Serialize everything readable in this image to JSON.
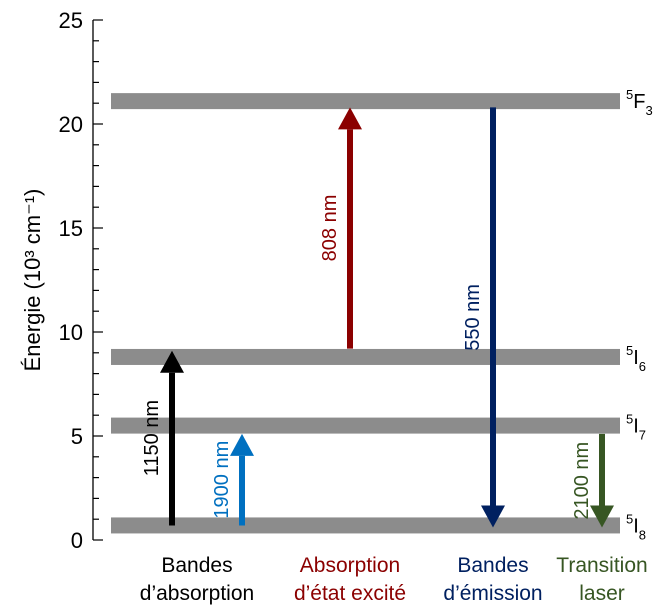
{
  "chart_data": {
    "type": "diagram",
    "ylabel": "Énergie (10³ cm⁻¹)",
    "ylim": [
      0,
      25
    ],
    "yticks": [
      0,
      5,
      10,
      15,
      20,
      25
    ],
    "levels": [
      {
        "id": "5I8",
        "sup": "5",
        "base": "I",
        "sub": "8",
        "energy": 0.7,
        "color": "#8c8c8c"
      },
      {
        "id": "5I7",
        "sup": "5",
        "base": "I",
        "sub": "7",
        "energy": 5.5,
        "color": "#8c8c8c"
      },
      {
        "id": "5I6",
        "sup": "5",
        "base": "I",
        "sub": "6",
        "energy": 8.8,
        "color": "#8c8c8c"
      },
      {
        "id": "5F3",
        "sup": "5",
        "base": "F",
        "sub": "3",
        "energy": 21.1,
        "color": "#8c8c8c"
      }
    ],
    "transitions": [
      {
        "id": "1150",
        "label": "1150 nm",
        "from": 0.7,
        "to": 9.1,
        "color": "#000000",
        "group": 0,
        "offset": -25
      },
      {
        "id": "1900",
        "label": "1900 nm",
        "from": 0.7,
        "to": 5.1,
        "color": "#0070c0",
        "group": 0,
        "offset": 45
      },
      {
        "id": "808",
        "label": "808 nm",
        "from": 9.2,
        "to": 20.8,
        "color": "#8b0000",
        "group": 1,
        "offset": 0
      },
      {
        "id": "550",
        "label": "550 nm",
        "from": 20.8,
        "to": 0.6,
        "color": "#002060",
        "group": 2,
        "offset": 0
      },
      {
        "id": "2100",
        "label": "2100 nm",
        "from": 5.1,
        "to": 0.6,
        "color": "#375623",
        "group": 3,
        "offset": 0
      }
    ],
    "groups": [
      {
        "line1": "Bandes",
        "line2": "d’absorption",
        "color": "#000000"
      },
      {
        "line1": "Absorption",
        "line2": "d’état excité",
        "color": "#8b0000"
      },
      {
        "line1": "Bandes",
        "line2": "d’émission",
        "color": "#002060"
      },
      {
        "line1": "Transition",
        "line2": "laser",
        "color": "#375623"
      }
    ]
  }
}
